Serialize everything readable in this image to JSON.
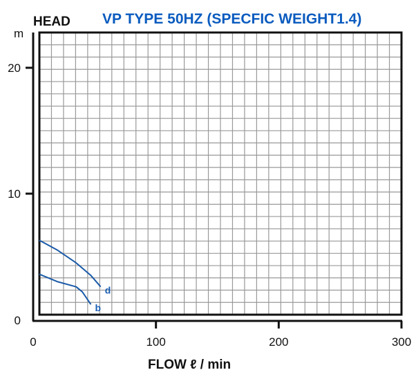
{
  "chart_data": {
    "type": "line",
    "title": "VP TYPE 50HZ (SPECFIC WEIGHT1.4)",
    "ylabel": "HEAD",
    "yunit": "m",
    "xlabel": "FLOW ℓ / min",
    "xlim": [
      0,
      300
    ],
    "ylim": [
      0,
      23
    ],
    "xticks": [
      "0",
      "100",
      "200",
      "300"
    ],
    "yticks": [
      "0",
      "10",
      "20"
    ],
    "grid": true,
    "line_color": "#1a5aa8",
    "series": [
      {
        "name": "d",
        "points": [
          [
            5,
            6.3
          ],
          [
            20,
            5.5
          ],
          [
            35,
            4.5
          ],
          [
            47,
            3.5
          ],
          [
            55,
            2.6
          ]
        ]
      },
      {
        "name": "b",
        "points": [
          [
            5,
            3.6
          ],
          [
            20,
            3.0
          ],
          [
            35,
            2.6
          ],
          [
            40,
            2.2
          ],
          [
            47,
            1.2
          ]
        ]
      }
    ]
  }
}
